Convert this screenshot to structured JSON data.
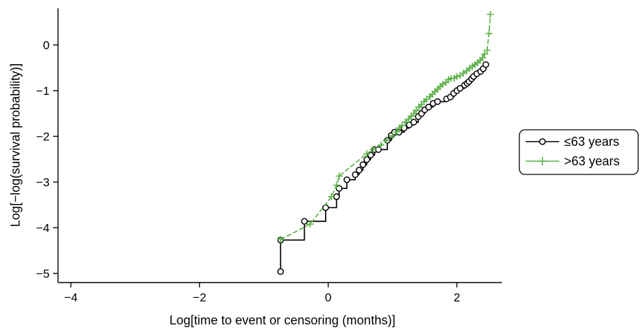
{
  "chart_data": {
    "type": "line",
    "xlabel": "Log[time to event or censoring (months)]",
    "ylabel": "Log[−log(survival probability)]",
    "xlim": [
      -4.2,
      2.7
    ],
    "ylim": [
      -5.2,
      0.8
    ],
    "xticks": [
      -4,
      -2,
      0,
      2
    ],
    "yticks": [
      0,
      -1,
      -2,
      -3,
      -4,
      -5
    ],
    "xtick_labels": [
      "−4",
      "−2",
      "0",
      "2"
    ],
    "ytick_labels": [
      "0",
      "−1",
      "−2",
      "−3",
      "−4",
      "−5"
    ],
    "grid": false,
    "legend_position": "right",
    "series": [
      {
        "name": "≤63 years",
        "color": "#000000",
        "marker": "circle",
        "step": true,
        "x": [
          -0.74,
          -0.74,
          -0.37,
          -0.04,
          0.13,
          0.13,
          0.17,
          0.29,
          0.42,
          0.48,
          0.54,
          0.6,
          0.66,
          0.72,
          0.78,
          0.92,
          0.98,
          1.03,
          1.1,
          1.18,
          1.26,
          1.33,
          1.4,
          1.45,
          1.5,
          1.56,
          1.63,
          1.7,
          1.84,
          1.9,
          1.95,
          2.0,
          2.05,
          2.12,
          2.16,
          2.19,
          2.23,
          2.26,
          2.31,
          2.37,
          2.41,
          2.45
        ],
        "y": [
          -4.96,
          -4.27,
          -3.86,
          -3.56,
          -3.32,
          -3.32,
          -3.14,
          -2.95,
          -2.84,
          -2.74,
          -2.62,
          -2.51,
          -2.41,
          -2.29,
          -2.29,
          -2.09,
          -1.98,
          -1.91,
          -1.91,
          -1.82,
          -1.75,
          -1.69,
          -1.57,
          -1.5,
          -1.42,
          -1.36,
          -1.28,
          -1.24,
          -1.18,
          -1.14,
          -1.06,
          -1.0,
          -0.95,
          -0.88,
          -0.84,
          -0.8,
          -0.74,
          -0.69,
          -0.63,
          -0.58,
          -0.52,
          -0.43
        ]
      },
      {
        "name": ">63 years",
        "color": "#5eb14b",
        "marker": "plus",
        "dashed": true,
        "x": [
          -0.74,
          -0.28,
          0.05,
          0.13,
          0.17,
          0.6,
          0.7,
          0.82,
          0.9,
          1.0,
          1.07,
          1.1,
          1.15,
          1.2,
          1.25,
          1.29,
          1.33,
          1.37,
          1.41,
          1.45,
          1.49,
          1.53,
          1.58,
          1.62,
          1.66,
          1.7,
          1.74,
          1.78,
          1.83,
          1.87,
          1.91,
          1.96,
          2.0,
          2.05,
          2.1,
          2.15,
          2.2,
          2.24,
          2.28,
          2.32,
          2.36,
          2.4,
          2.43,
          2.47,
          2.5,
          2.52
        ],
        "y": [
          -4.26,
          -3.92,
          -3.32,
          -3.07,
          -2.87,
          -2.38,
          -2.28,
          -2.19,
          -2.09,
          -1.99,
          -1.9,
          -1.82,
          -1.76,
          -1.69,
          -1.62,
          -1.56,
          -1.5,
          -1.43,
          -1.36,
          -1.3,
          -1.24,
          -1.19,
          -1.13,
          -1.08,
          -1.02,
          -0.97,
          -0.91,
          -0.86,
          -0.82,
          -0.76,
          -0.73,
          -0.73,
          -0.69,
          -0.67,
          -0.62,
          -0.57,
          -0.51,
          -0.47,
          -0.43,
          -0.39,
          -0.34,
          -0.28,
          -0.2,
          -0.12,
          0.25,
          0.67
        ]
      }
    ]
  }
}
